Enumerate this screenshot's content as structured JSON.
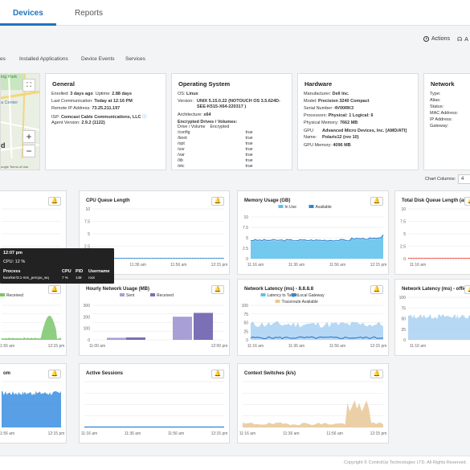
{
  "tabs": [
    {
      "label": "Devices"
    },
    {
      "label": "Reports"
    }
  ],
  "actions": {
    "actions_label": "Actions",
    "second_label": "A"
  },
  "subtabs": [
    "es",
    "Installed Applications",
    "Device Events",
    "Services"
  ],
  "map": {
    "labels": [
      "ing Park",
      "a Center",
      "d"
    ],
    "attribution": "oogle  Terms of Use"
  },
  "general": {
    "title": "General",
    "enrolled_label": "Enrolled:",
    "enrolled": "3 days ago",
    "uptime_label": "Uptime:",
    "uptime": "2.88 days",
    "last_comm_label": "Last Communication:",
    "last_comm": "Today at 12:16 PM",
    "remote_ip_label": "Remote IP Address:",
    "remote_ip": "73.25.211.197",
    "isp_label": "ISP:",
    "isp": "Comcast Cable Communications, LLC",
    "agent_label": "Agent Version:",
    "agent": "2.9.2 (1122)"
  },
  "os": {
    "title": "Operating System",
    "os_label": "OS:",
    "os": "Linux",
    "version_label": "Version:",
    "version_1": "UNIX 5.15.0.22 (NOTOUCH OS 3.5.624D-",
    "version_2": "SEE-K515-X64-220317 )",
    "arch_label": "Architecture:",
    "arch": "x64",
    "enc_title": "Encrypted Drives / Volumes:",
    "enc_head": [
      "Drive / Volume",
      "Encrypted"
    ],
    "enc_rows": [
      [
        "/config",
        "true"
      ],
      [
        "/boot",
        "true"
      ],
      [
        "/opt",
        "true"
      ],
      [
        "/usr",
        "true"
      ],
      [
        "/var",
        "true"
      ],
      [
        "/lib",
        "true"
      ],
      [
        "/etc",
        "true"
      ]
    ]
  },
  "hardware": {
    "title": "Hardware",
    "manufacturer_label": "Manufacturer:",
    "manufacturer": "Dell Inc.",
    "model_label": "Model:",
    "model": "Precision 3240 Compact",
    "serial_label": "Serial Number:",
    "serial": "4V00RK3",
    "processors_label": "Processors:",
    "processors": "Physical: 1  Logical: 6",
    "memory_label": "Physical Memory:",
    "memory": "7662 MB",
    "gpu_label": "GPU",
    "gpu_1": "Advanced Micro Devices, Inc. [AMD/ATI]",
    "gpu_name_label": "Name:",
    "gpu_2": "Polaris12 (rev 10)",
    "gpu_mem_label": "GPU Memory:",
    "gpu_mem": "4096 MB"
  },
  "network": {
    "title": "Network",
    "fields": [
      "Type:",
      "Alias:",
      "Status:",
      "MAC Address:",
      "IP Address:",
      "Gateway:"
    ]
  },
  "chart_columns": {
    "label": "Chart Columns:",
    "value": "4"
  },
  "tooltip": {
    "time": "12:07 pm",
    "cpu_line": "CPU: 12 %",
    "head": [
      "Process",
      "CPU",
      "PID",
      "Username"
    ],
    "row": [
      "kworker/3:1-mm_percpu_wq",
      "7 %",
      "148",
      "root"
    ]
  },
  "charts": [
    {
      "title": "",
      "type": "line",
      "x_labels": [],
      "y_labels": []
    },
    {
      "title": "CPU Queue Length",
      "type": "line",
      "x_labels": [
        "11:16 am",
        "11:36 am",
        "11:56 am",
        "12:15 pm"
      ],
      "y_labels": [
        "10",
        "7.5",
        "5",
        "2.5",
        "0"
      ]
    },
    {
      "title": "Memory Usage (GB)",
      "type": "area",
      "legend": [
        "In Use",
        "Available"
      ],
      "x_labels": [
        "11:16 am",
        "11:36 am",
        "11:56 am",
        "12:15 pm"
      ],
      "y_labels": [
        "10",
        "7.5",
        "5",
        "2.5",
        "0"
      ]
    },
    {
      "title": "Total Disk Queue Length (all disks)",
      "type": "line",
      "x_labels": [
        "11:16 am"
      ],
      "y_labels": [
        "10",
        "7.5",
        "5",
        "2.5",
        "0"
      ]
    },
    {
      "title": "",
      "type": "area",
      "legend": [
        "Received"
      ],
      "x_labels": [
        "11:56 am",
        "12:15 pm"
      ],
      "y_labels": []
    },
    {
      "title": "Hourly Network Usage (MB)",
      "type": "bar",
      "legend": [
        "Sent",
        "Received"
      ],
      "x_labels": [
        "11:00 am",
        "12:00 pm"
      ],
      "y_labels": [
        "300",
        "200",
        "100",
        "0"
      ]
    },
    {
      "title": "Network Latency (ms) - 8.8.8.8",
      "type": "area",
      "legend": [
        "Latency to Target",
        "Local Gateway",
        "Traceroute Available"
      ],
      "x_labels": [
        "11:16 am",
        "11:36 am",
        "11:56 am",
        "12:15 pm"
      ],
      "y_labels": [
        "100",
        "75",
        "50",
        "25",
        "0"
      ]
    },
    {
      "title": "Network Latency (ms) - office.com",
      "type": "area",
      "x_labels": [
        "11:16 am"
      ],
      "y_labels": [
        "100",
        "75",
        "50",
        "25",
        "0"
      ]
    },
    {
      "title": "om",
      "type": "area",
      "x_labels": [
        "11:56 am",
        "12:15 pm"
      ],
      "y_labels": []
    },
    {
      "title": "Active Sessions",
      "type": "line",
      "x_labels": [
        "11:16 am",
        "11:36 am",
        "11:56 am",
        "12:15 pm"
      ],
      "y_labels": []
    },
    {
      "title": "Context Switches (k/s)",
      "type": "area",
      "x_labels": [
        "11:16 am",
        "11:36 am",
        "11:56 am",
        "12:15 pm"
      ],
      "y_labels": []
    }
  ],
  "colors": {
    "accent": "#1e73be",
    "in_use": "#5bc0eb",
    "available": "#2f86d1",
    "sent": "#a89fd6",
    "received": "#7b6fb5",
    "green": "#7ac66b",
    "tan": "#e8c796",
    "grid": "#e6e6e6"
  },
  "footer": "Copyright © ControlUp Technologies LTD. All Rights Reserved."
}
